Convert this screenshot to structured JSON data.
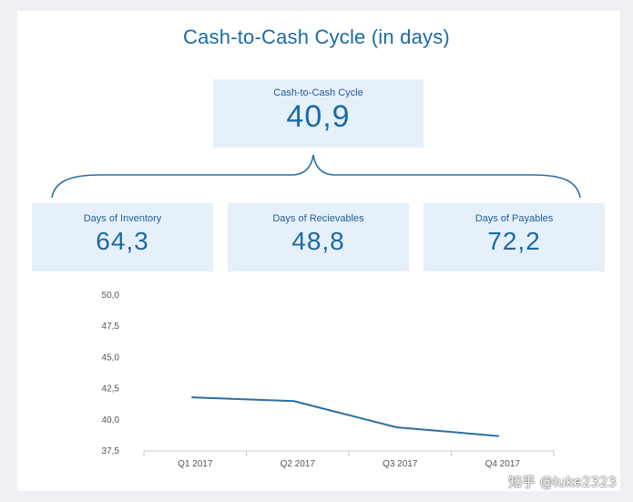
{
  "title": "Cash-to-Cash Cycle (in days)",
  "kpis": {
    "main": {
      "label": "Cash-to-Cash Cycle",
      "value": "40,9"
    },
    "inventory": {
      "label": "Days of Inventory",
      "value": "64,3"
    },
    "receivables": {
      "label": "Days of Recievables",
      "value": "48,8"
    },
    "payables": {
      "label": "Days of Payables",
      "value": "72,2"
    }
  },
  "watermark": "知乎 @luke2323",
  "colors": {
    "accent": "#1b6aa3",
    "kpi_bg": "#e6f0fa",
    "line": "#2a6fa3"
  },
  "chart_data": {
    "type": "line",
    "categories": [
      "Q1 2017",
      "Q2 2017",
      "Q3 2017",
      "Q4 2017"
    ],
    "series": [
      {
        "values": [
          41.8,
          41.5,
          39.4,
          38.7
        ]
      }
    ],
    "ylim": [
      37.5,
      50.0
    ],
    "yticks": [
      "50,0",
      "47,5",
      "45,0",
      "42,5",
      "40,0",
      "37,5"
    ],
    "yticks_values": [
      50.0,
      47.5,
      45.0,
      42.5,
      40.0,
      37.5
    ],
    "grid": false,
    "legend": "none"
  }
}
